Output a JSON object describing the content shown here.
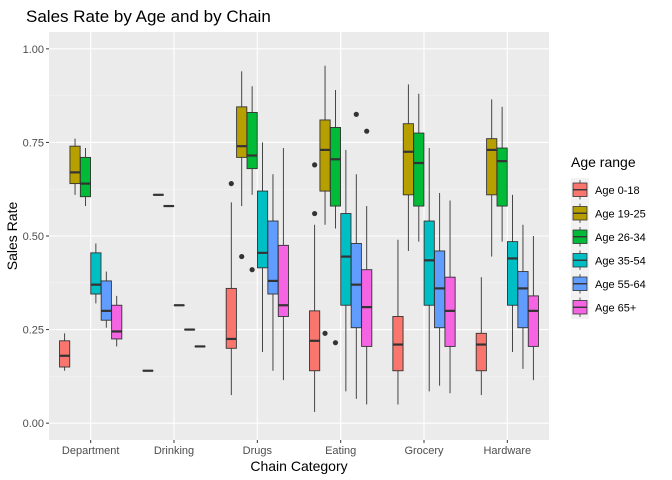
{
  "chart_data": {
    "type": "boxplot",
    "title": "Sales Rate by Age and by Chain",
    "xlabel": "Chain Category",
    "ylabel": "Sales Rate",
    "ylim": [
      0,
      1
    ],
    "yticks": [
      "0.00",
      "0.25",
      "0.50",
      "0.75",
      "1.00"
    ],
    "grid": true,
    "legend": {
      "title": "Age range",
      "position": "right"
    },
    "categories": [
      "Department",
      "Drinking",
      "Drugs",
      "Eating",
      "Grocery",
      "Hardware"
    ],
    "series": [
      {
        "name": "Age 0-18",
        "color": "#F8766D",
        "boxes": [
          {
            "min": 0.14,
            "q1": 0.15,
            "median": 0.18,
            "q3": 0.22,
            "max": 0.24,
            "outliers": []
          },
          {
            "min": 0.14,
            "q1": 0.14,
            "median": 0.14,
            "q3": 0.14,
            "max": 0.14,
            "outliers": []
          },
          {
            "min": 0.075,
            "q1": 0.2,
            "median": 0.225,
            "q3": 0.36,
            "max": 0.59,
            "outliers": [
              0.64
            ]
          },
          {
            "min": 0.03,
            "q1": 0.14,
            "median": 0.22,
            "q3": 0.3,
            "max": 0.53,
            "outliers": [
              0.56,
              0.69
            ]
          },
          {
            "min": 0.05,
            "q1": 0.14,
            "median": 0.21,
            "q3": 0.285,
            "max": 0.49,
            "outliers": []
          },
          {
            "min": 0.075,
            "q1": 0.14,
            "median": 0.21,
            "q3": 0.24,
            "max": 0.39,
            "outliers": []
          }
        ]
      },
      {
        "name": "Age 19-25",
        "color": "#B79F00",
        "boxes": [
          {
            "min": 0.61,
            "q1": 0.64,
            "median": 0.67,
            "q3": 0.74,
            "max": 0.76,
            "outliers": []
          },
          {
            "min": 0.61,
            "q1": 0.61,
            "median": 0.61,
            "q3": 0.61,
            "max": 0.61,
            "outliers": []
          },
          {
            "min": 0.58,
            "q1": 0.71,
            "median": 0.74,
            "q3": 0.845,
            "max": 0.94,
            "outliers": [
              0.445
            ]
          },
          {
            "min": 0.53,
            "q1": 0.62,
            "median": 0.73,
            "q3": 0.81,
            "max": 0.955,
            "outliers": [
              0.24
            ]
          },
          {
            "min": 0.46,
            "q1": 0.61,
            "median": 0.725,
            "q3": 0.8,
            "max": 0.905,
            "outliers": []
          },
          {
            "min": 0.445,
            "q1": 0.61,
            "median": 0.73,
            "q3": 0.76,
            "max": 0.865,
            "outliers": []
          }
        ]
      },
      {
        "name": "Age 26-34",
        "color": "#00BA38",
        "boxes": [
          {
            "min": 0.58,
            "q1": 0.605,
            "median": 0.64,
            "q3": 0.71,
            "max": 0.735,
            "outliers": []
          },
          {
            "min": 0.58,
            "q1": 0.58,
            "median": 0.58,
            "q3": 0.58,
            "max": 0.58,
            "outliers": []
          },
          {
            "min": 0.61,
            "q1": 0.68,
            "median": 0.715,
            "q3": 0.83,
            "max": 0.9,
            "outliers": [
              0.41
            ]
          },
          {
            "min": 0.52,
            "q1": 0.58,
            "median": 0.705,
            "q3": 0.79,
            "max": 0.89,
            "outliers": [
              0.215
            ]
          },
          {
            "min": 0.485,
            "q1": 0.58,
            "median": 0.695,
            "q3": 0.775,
            "max": 0.88,
            "outliers": []
          },
          {
            "min": 0.485,
            "q1": 0.58,
            "median": 0.7,
            "q3": 0.735,
            "max": 0.845,
            "outliers": []
          }
        ]
      },
      {
        "name": "Age 35-54",
        "color": "#00BFC4",
        "boxes": [
          {
            "min": 0.32,
            "q1": 0.345,
            "median": 0.37,
            "q3": 0.455,
            "max": 0.48,
            "outliers": []
          },
          {
            "min": 0.315,
            "q1": 0.315,
            "median": 0.315,
            "q3": 0.315,
            "max": 0.315,
            "outliers": []
          },
          {
            "min": 0.19,
            "q1": 0.415,
            "median": 0.455,
            "q3": 0.62,
            "max": 0.75,
            "outliers": []
          },
          {
            "min": 0.085,
            "q1": 0.315,
            "median": 0.445,
            "q3": 0.56,
            "max": 0.73,
            "outliers": []
          },
          {
            "min": 0.085,
            "q1": 0.315,
            "median": 0.435,
            "q3": 0.54,
            "max": 0.735,
            "outliers": []
          },
          {
            "min": 0.19,
            "q1": 0.315,
            "median": 0.44,
            "q3": 0.485,
            "max": 0.61,
            "outliers": []
          }
        ]
      },
      {
        "name": "Age 55-64",
        "color": "#619CFF",
        "boxes": [
          {
            "min": 0.255,
            "q1": 0.275,
            "median": 0.3,
            "q3": 0.38,
            "max": 0.405,
            "outliers": []
          },
          {
            "min": 0.25,
            "q1": 0.25,
            "median": 0.25,
            "q3": 0.25,
            "max": 0.25,
            "outliers": []
          },
          {
            "min": 0.14,
            "q1": 0.345,
            "median": 0.38,
            "q3": 0.54,
            "max": 0.665,
            "outliers": []
          },
          {
            "min": 0.065,
            "q1": 0.255,
            "median": 0.37,
            "q3": 0.48,
            "max": 0.665,
            "outliers": [
              0.825
            ]
          },
          {
            "min": 0.1,
            "q1": 0.255,
            "median": 0.36,
            "q3": 0.46,
            "max": 0.615,
            "outliers": []
          },
          {
            "min": 0.145,
            "q1": 0.255,
            "median": 0.36,
            "q3": 0.405,
            "max": 0.53,
            "outliers": []
          }
        ]
      },
      {
        "name": "Age 65+",
        "color": "#F564E3",
        "boxes": [
          {
            "min": 0.205,
            "q1": 0.225,
            "median": 0.245,
            "q3": 0.315,
            "max": 0.34,
            "outliers": []
          },
          {
            "min": 0.205,
            "q1": 0.205,
            "median": 0.205,
            "q3": 0.205,
            "max": 0.205,
            "outliers": []
          },
          {
            "min": 0.115,
            "q1": 0.285,
            "median": 0.315,
            "q3": 0.475,
            "max": 0.735,
            "outliers": []
          },
          {
            "min": 0.05,
            "q1": 0.205,
            "median": 0.31,
            "q3": 0.41,
            "max": 0.58,
            "outliers": [
              0.78
            ]
          },
          {
            "min": 0.08,
            "q1": 0.205,
            "median": 0.3,
            "q3": 0.39,
            "max": 0.595,
            "outliers": []
          },
          {
            "min": 0.115,
            "q1": 0.205,
            "median": 0.3,
            "q3": 0.34,
            "max": 0.5,
            "outliers": []
          }
        ]
      }
    ]
  }
}
